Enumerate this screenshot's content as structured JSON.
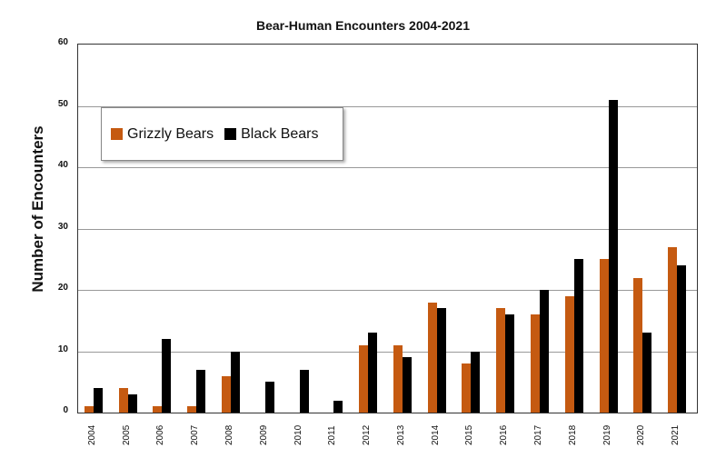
{
  "chart_data": {
    "type": "bar",
    "title": "Bear-Human Encounters 2004-2021",
    "xlabel": "",
    "ylabel": "Number of Encounters",
    "ylim": [
      0,
      60
    ],
    "yticks": [
      0,
      10,
      20,
      30,
      40,
      50,
      60
    ],
    "grid": true,
    "legend_position": "upper-left inset",
    "categories": [
      "2004",
      "2005",
      "2006",
      "2007",
      "2008",
      "2009",
      "2010",
      "2011",
      "2012",
      "2013",
      "2014",
      "2015",
      "2016",
      "2017",
      "2018",
      "2019",
      "2020",
      "2021"
    ],
    "series": [
      {
        "name": "Grizzly Bears",
        "color": "#c55a11",
        "values": [
          1,
          4,
          1,
          1,
          6,
          0,
          0,
          0,
          11,
          11,
          18,
          8,
          17,
          16,
          19,
          25,
          22,
          27
        ]
      },
      {
        "name": "Black Bears",
        "color": "#000000",
        "values": [
          4,
          3,
          12,
          7,
          10,
          5,
          7,
          2,
          13,
          9,
          17,
          10,
          16,
          20,
          25,
          51,
          13,
          24
        ]
      }
    ]
  }
}
